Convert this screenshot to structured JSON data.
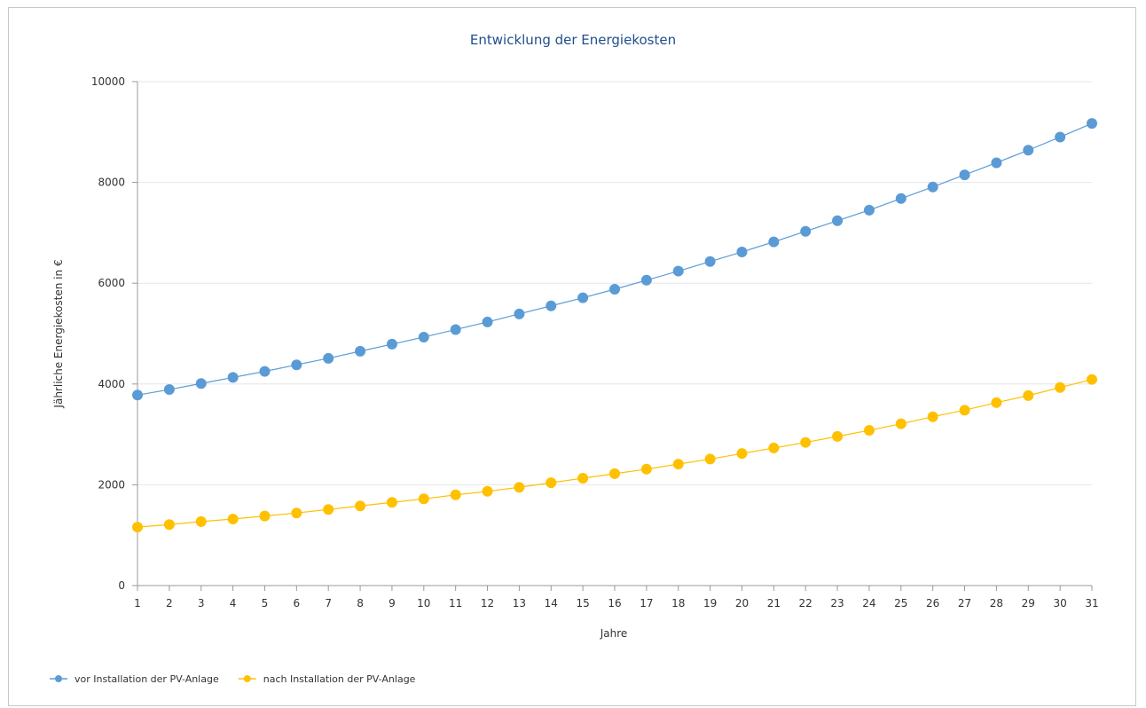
{
  "chart_data": {
    "type": "line",
    "title": "Entwicklung der Energiekosten",
    "xlabel": "Jahre",
    "ylabel": "Jährliche Energiekosten in €",
    "x": [
      1,
      2,
      3,
      4,
      5,
      6,
      7,
      8,
      9,
      10,
      11,
      12,
      13,
      14,
      15,
      16,
      17,
      18,
      19,
      20,
      21,
      22,
      23,
      24,
      25,
      26,
      27,
      28,
      29,
      30,
      31
    ],
    "ylim": [
      0,
      10000
    ],
    "yticks": [
      0,
      2000,
      4000,
      6000,
      8000,
      10000
    ],
    "grid": true,
    "legend_position": "bottom-left",
    "series": [
      {
        "name": "vor Installation der PV-Anlage",
        "color": "#5b9bd5",
        "values": [
          3780,
          3890,
          4010,
          4130,
          4250,
          4380,
          4510,
          4650,
          4790,
          4930,
          5080,
          5230,
          5390,
          5550,
          5710,
          5880,
          6060,
          6240,
          6430,
          6620,
          6820,
          7030,
          7240,
          7450,
          7680,
          7910,
          8150,
          8390,
          8640,
          8900,
          9170
        ]
      },
      {
        "name": "nach Installation der PV-Anlage",
        "color": "#ffc000",
        "values": [
          1160,
          1210,
          1270,
          1320,
          1380,
          1440,
          1510,
          1580,
          1650,
          1720,
          1800,
          1870,
          1950,
          2040,
          2130,
          2220,
          2310,
          2410,
          2510,
          2620,
          2730,
          2840,
          2960,
          3080,
          3210,
          3350,
          3480,
          3630,
          3770,
          3930,
          4090
        ]
      }
    ]
  }
}
